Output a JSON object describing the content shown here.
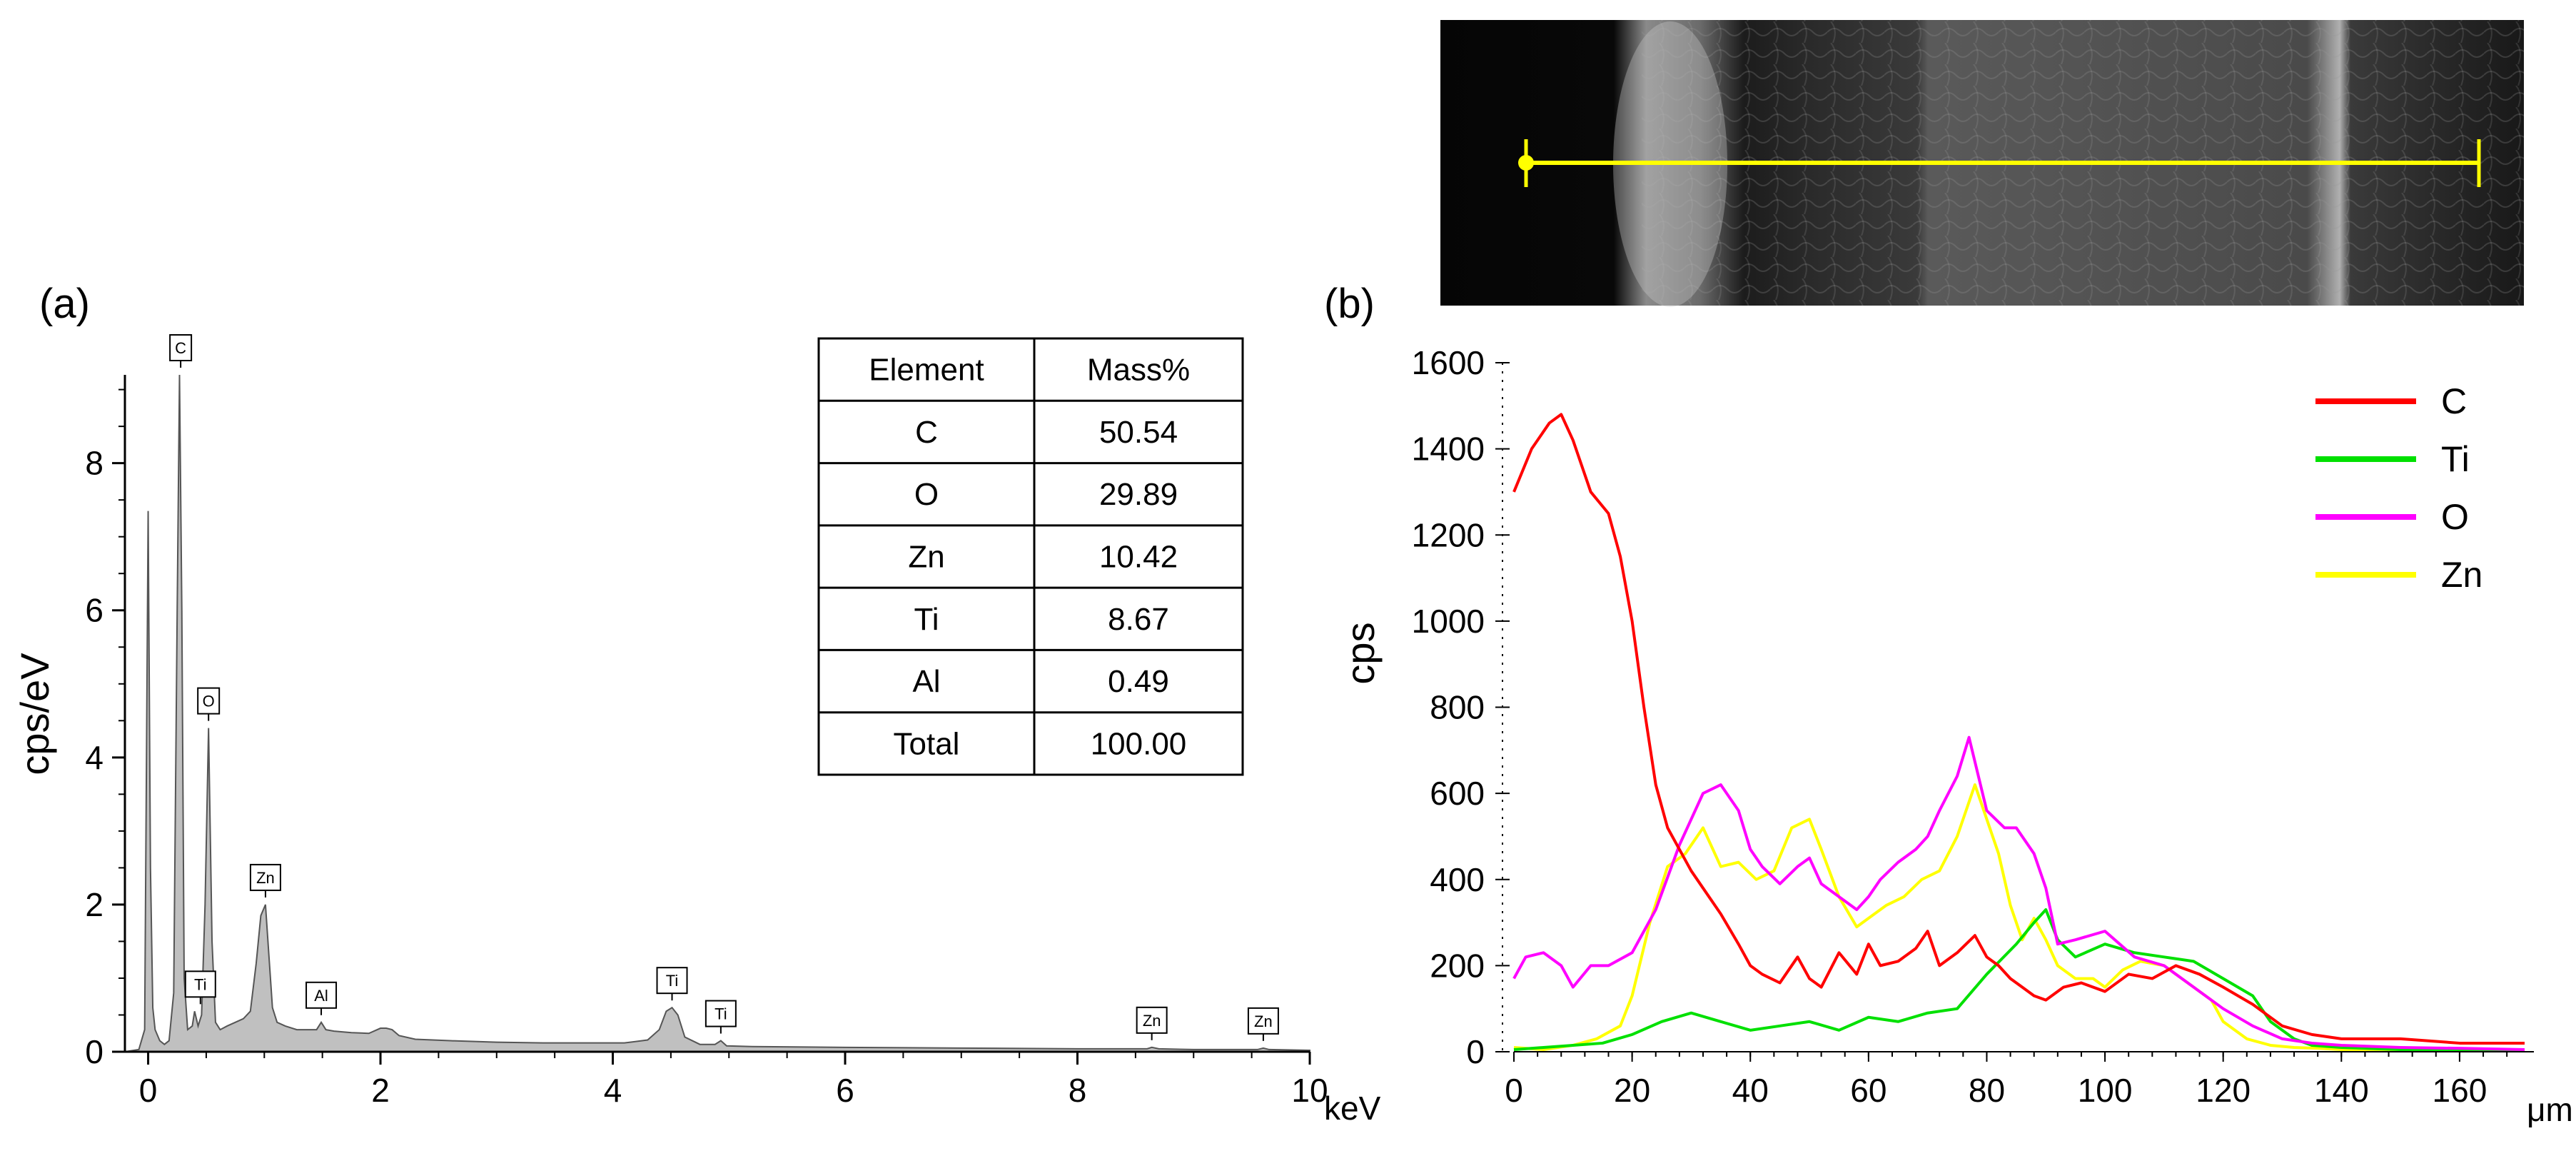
{
  "panels": {
    "a_label": "(a)",
    "b_label": "(b)"
  },
  "chart_data": [
    {
      "id": "eds_spectrum",
      "type": "area",
      "title": "",
      "xlabel": "keV",
      "ylabel": "cps/eV",
      "xlim": [
        -0.2,
        10.0
      ],
      "ylim": [
        0,
        9.2
      ],
      "x_ticks": [
        0,
        2,
        4,
        6,
        8,
        10
      ],
      "y_ticks": [
        0,
        2,
        4,
        6,
        8
      ],
      "fill_color": "#c0c0c0",
      "x": [
        -0.2,
        -0.08,
        -0.03,
        0.0,
        0.02,
        0.04,
        0.06,
        0.1,
        0.14,
        0.18,
        0.22,
        0.25,
        0.27,
        0.29,
        0.31,
        0.34,
        0.38,
        0.4,
        0.43,
        0.46,
        0.49,
        0.52,
        0.55,
        0.58,
        0.62,
        0.68,
        0.75,
        0.82,
        0.88,
        0.93,
        0.97,
        1.01,
        1.04,
        1.07,
        1.11,
        1.18,
        1.28,
        1.38,
        1.45,
        1.49,
        1.53,
        1.6,
        1.75,
        1.9,
        2.0,
        2.05,
        2.1,
        2.16,
        2.3,
        2.6,
        3.0,
        3.4,
        3.8,
        4.1,
        4.3,
        4.4,
        4.46,
        4.51,
        4.56,
        4.62,
        4.75,
        4.88,
        4.93,
        4.98,
        5.2,
        6.0,
        7.0,
        8.0,
        8.6,
        8.64,
        8.7,
        9.0,
        9.55,
        9.6,
        9.65,
        10.0
      ],
      "y": [
        0.0,
        0.03,
        0.3,
        7.35,
        2.5,
        0.6,
        0.3,
        0.15,
        0.1,
        0.15,
        0.8,
        6.0,
        9.2,
        6.0,
        1.0,
        0.3,
        0.35,
        0.55,
        0.35,
        0.5,
        2.0,
        4.4,
        1.5,
        0.4,
        0.3,
        0.35,
        0.4,
        0.45,
        0.55,
        1.2,
        1.85,
        2.0,
        1.3,
        0.6,
        0.4,
        0.35,
        0.3,
        0.3,
        0.3,
        0.4,
        0.3,
        0.28,
        0.26,
        0.25,
        0.32,
        0.32,
        0.3,
        0.22,
        0.17,
        0.15,
        0.13,
        0.12,
        0.12,
        0.12,
        0.16,
        0.3,
        0.55,
        0.6,
        0.5,
        0.2,
        0.1,
        0.1,
        0.15,
        0.08,
        0.07,
        0.06,
        0.05,
        0.04,
        0.04,
        0.06,
        0.04,
        0.03,
        0.03,
        0.05,
        0.03,
        0.02
      ],
      "peak_labels": [
        {
          "label": "C",
          "x": 0.28,
          "y": 9.2
        },
        {
          "label": "O",
          "x": 0.52,
          "y": 4.4
        },
        {
          "label": "Ti",
          "x": 0.45,
          "y": 0.55
        },
        {
          "label": "Zn",
          "x": 1.01,
          "y": 2.0
        },
        {
          "label": "Al",
          "x": 1.49,
          "y": 0.4
        },
        {
          "label": "Ti",
          "x": 4.51,
          "y": 0.6
        },
        {
          "label": "Ti",
          "x": 4.93,
          "y": 0.15
        },
        {
          "label": "Zn",
          "x": 8.64,
          "y": 0.06
        },
        {
          "label": "Zn",
          "x": 9.6,
          "y": 0.05
        }
      ]
    },
    {
      "id": "composition_table",
      "type": "table",
      "headers": [
        "Element",
        "Mass%"
      ],
      "rows": [
        [
          "C",
          "50.54"
        ],
        [
          "O",
          "29.89"
        ],
        [
          "Zn",
          "10.42"
        ],
        [
          "Ti",
          "8.67"
        ],
        [
          "Al",
          "0.49"
        ],
        [
          "Total",
          "100.00"
        ]
      ]
    },
    {
      "id": "line_scan",
      "type": "line",
      "title": "",
      "xlabel": "μm",
      "ylabel": "cps",
      "xlim": [
        0,
        171
      ],
      "ylim": [
        0,
        1600
      ],
      "x_ticks": [
        0,
        20,
        40,
        60,
        80,
        100,
        120,
        140,
        160
      ],
      "y_ticks": [
        0,
        200,
        400,
        600,
        800,
        1000,
        1200,
        1400,
        1600
      ],
      "legend_position": "top-right",
      "series": [
        {
          "name": "C",
          "color": "#ff0000",
          "x": [
            0,
            3,
            6,
            8,
            10,
            13,
            16,
            18,
            20,
            22,
            24,
            26,
            28,
            30,
            32,
            35,
            38,
            40,
            42,
            45,
            48,
            50,
            52,
            55,
            58,
            60,
            62,
            65,
            68,
            70,
            72,
            75,
            78,
            80,
            82,
            84,
            86,
            88,
            90,
            93,
            96,
            100,
            104,
            108,
            112,
            116,
            120,
            125,
            130,
            135,
            140,
            145,
            150,
            155,
            160,
            165,
            171
          ],
          "y": [
            1300,
            1400,
            1460,
            1480,
            1420,
            1300,
            1250,
            1150,
            1000,
            800,
            620,
            520,
            470,
            420,
            380,
            320,
            250,
            200,
            180,
            160,
            220,
            170,
            150,
            230,
            180,
            250,
            200,
            210,
            240,
            280,
            200,
            230,
            270,
            220,
            200,
            170,
            150,
            130,
            120,
            150,
            160,
            140,
            180,
            170,
            200,
            180,
            150,
            110,
            60,
            40,
            30,
            30,
            30,
            25,
            20,
            20,
            20
          ]
        },
        {
          "name": "Ti",
          "color": "#00e000",
          "x": [
            0,
            5,
            10,
            15,
            20,
            25,
            30,
            35,
            40,
            45,
            50,
            55,
            60,
            65,
            70,
            75,
            80,
            85,
            88,
            90,
            92,
            95,
            100,
            105,
            110,
            115,
            120,
            125,
            128,
            132,
            135,
            140,
            150,
            160,
            171
          ],
          "y": [
            5,
            10,
            15,
            20,
            40,
            70,
            90,
            70,
            50,
            60,
            70,
            50,
            80,
            70,
            90,
            100,
            180,
            250,
            300,
            330,
            260,
            220,
            250,
            230,
            220,
            210,
            170,
            130,
            70,
            30,
            15,
            10,
            5,
            5,
            5
          ]
        },
        {
          "name": "O",
          "color": "#ff00ff",
          "x": [
            0,
            2,
            5,
            8,
            10,
            13,
            16,
            20,
            24,
            28,
            32,
            35,
            38,
            40,
            42,
            45,
            48,
            50,
            52,
            55,
            58,
            60,
            62,
            65,
            68,
            70,
            72,
            75,
            77,
            80,
            83,
            85,
            88,
            90,
            92,
            95,
            100,
            105,
            110,
            115,
            120,
            125,
            130,
            135,
            140,
            150,
            160,
            171
          ],
          "y": [
            170,
            220,
            230,
            200,
            150,
            200,
            200,
            230,
            330,
            480,
            600,
            620,
            560,
            470,
            430,
            390,
            430,
            450,
            390,
            360,
            330,
            360,
            400,
            440,
            470,
            500,
            560,
            640,
            730,
            560,
            520,
            520,
            460,
            380,
            250,
            260,
            280,
            220,
            200,
            150,
            100,
            60,
            30,
            20,
            15,
            10,
            8,
            5
          ]
        },
        {
          "name": "Zn",
          "color": "#ffff00",
          "x": [
            0,
            5,
            10,
            14,
            18,
            20,
            23,
            26,
            29,
            32,
            35,
            38,
            41,
            44,
            47,
            50,
            52,
            55,
            58,
            60,
            63,
            66,
            69,
            72,
            75,
            78,
            80,
            82,
            84,
            86,
            88,
            90,
            92,
            95,
            98,
            100,
            103,
            106,
            110,
            114,
            118,
            120,
            124,
            128,
            132,
            136,
            140,
            150,
            160,
            171
          ],
          "y": [
            10,
            5,
            15,
            30,
            60,
            130,
            300,
            430,
            460,
            520,
            430,
            440,
            400,
            420,
            520,
            540,
            470,
            360,
            290,
            310,
            340,
            360,
            400,
            420,
            500,
            620,
            540,
            460,
            340,
            260,
            310,
            260,
            200,
            170,
            170,
            150,
            190,
            210,
            200,
            160,
            120,
            70,
            30,
            15,
            10,
            8,
            5,
            5,
            5,
            5
          ]
        }
      ]
    }
  ]
}
